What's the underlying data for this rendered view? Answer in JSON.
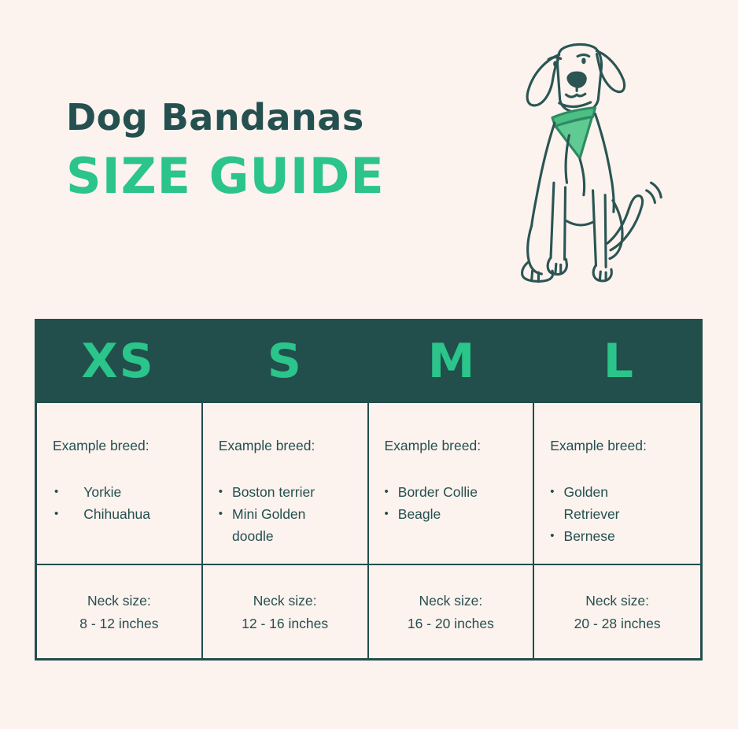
{
  "page": {
    "background_color": "#fcf2ee",
    "ink_color": "#24504f",
    "accent_green": "#2bc48b",
    "header_bg": "#224e4c"
  },
  "title": {
    "line1": "Dog Bandanas",
    "line2": "SIZE GUIDE"
  },
  "illustration": {
    "description": "line-drawn sitting dog wearing a green bandana, tail wagging",
    "line_color": "#2a5553",
    "bandana_fill": "#5fcb92",
    "bandana_band_fill": "#4cc084"
  },
  "table": {
    "example_label": "Example breed:",
    "neck_label": "Neck size:",
    "bullet_char": "•",
    "columns": [
      {
        "size": "XS",
        "breeds": [
          "Yorkie",
          "Chihuahua"
        ],
        "neck_range": "8 - 12 inches"
      },
      {
        "size": "S",
        "breeds": [
          "Boston terrier",
          "Mini Golden doodle"
        ],
        "neck_range": "12 - 16 inches"
      },
      {
        "size": "M",
        "breeds": [
          "Border Collie",
          "Beagle"
        ],
        "neck_range": "16 - 20 inches"
      },
      {
        "size": "L",
        "breeds": [
          "Golden Retriever",
          "Bernese"
        ],
        "neck_range": "20 - 28 inches"
      }
    ]
  }
}
